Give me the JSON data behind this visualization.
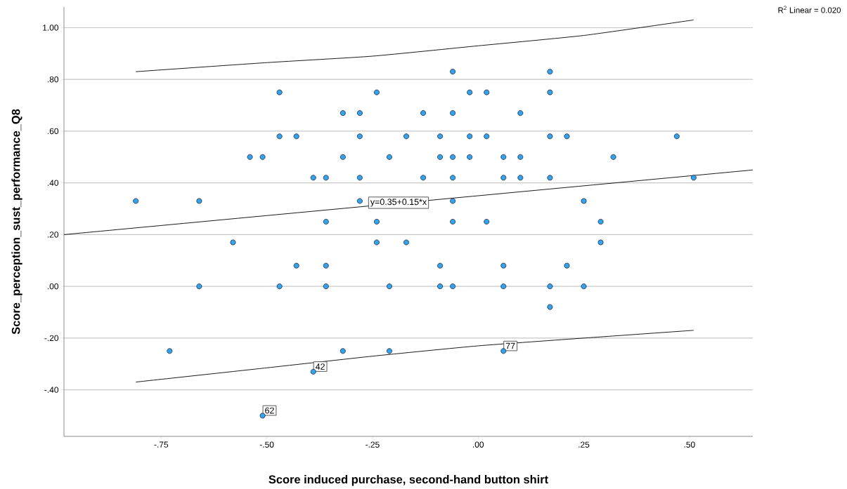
{
  "chart_data": {
    "type": "scatter",
    "xlabel": "Score induced purchase, second-hand button shirt",
    "ylabel": "Score_perception_sust_performance_Q8",
    "xlim": [
      -0.98,
      0.65
    ],
    "ylim": [
      -0.58,
      1.08
    ],
    "xticks": [
      {
        "value": -0.75,
        "label": "-.75"
      },
      {
        "value": -0.5,
        "label": "-.50"
      },
      {
        "value": -0.25,
        "label": "-.25"
      },
      {
        "value": 0,
        "label": ".00"
      },
      {
        "value": 0.25,
        "label": ".25"
      },
      {
        "value": 0.5,
        "label": ".50"
      }
    ],
    "yticks": [
      {
        "value": -0.4,
        "label": "-.40"
      },
      {
        "value": -0.2,
        "label": "-.20"
      },
      {
        "value": 0,
        "label": ".00"
      },
      {
        "value": 0.2,
        "label": ".20"
      },
      {
        "value": 0.4,
        "label": ".40"
      },
      {
        "value": 0.6,
        "label": ".60"
      },
      {
        "value": 0.8,
        "label": ".80"
      },
      {
        "value": 1,
        "label": "1.00"
      }
    ],
    "grid": "y",
    "series": [
      {
        "marker": "circle",
        "color": "#33a3ee",
        "x": [
          -0.06,
          0.17,
          -0.47,
          -0.24,
          -0.02,
          0.02,
          0.17,
          -0.32,
          -0.28,
          -0.13,
          -0.06,
          0.1,
          -0.47,
          -0.43,
          -0.28,
          -0.17,
          -0.09,
          -0.02,
          0.02,
          0.17,
          0.21,
          0.47,
          -0.54,
          -0.51,
          -0.32,
          -0.21,
          -0.09,
          -0.06,
          -0.02,
          0.06,
          0.1,
          0.32,
          -0.39,
          -0.36,
          -0.28,
          -0.13,
          -0.06,
          0.06,
          0.1,
          0.17,
          0.51,
          -0.81,
          -0.66,
          -0.28,
          -0.06,
          0.25,
          -0.36,
          -0.24,
          -0.06,
          0.02,
          0.29,
          -0.58,
          -0.24,
          -0.17,
          0.29,
          -0.43,
          -0.36,
          -0.09,
          0.06,
          0.21,
          -0.66,
          -0.47,
          -0.36,
          -0.21,
          -0.09,
          -0.06,
          0.06,
          0.17,
          0.25,
          0.17,
          -0.73,
          -0.32,
          -0.21,
          0.06,
          -0.39,
          -0.51
        ],
        "values": [
          0.83,
          0.83,
          0.75,
          0.75,
          0.75,
          0.75,
          0.75,
          0.67,
          0.67,
          0.67,
          0.67,
          0.67,
          0.58,
          0.58,
          0.58,
          0.58,
          0.58,
          0.58,
          0.58,
          0.58,
          0.58,
          0.58,
          0.5,
          0.5,
          0.5,
          0.5,
          0.5,
          0.5,
          0.5,
          0.5,
          0.5,
          0.5,
          0.42,
          0.42,
          0.42,
          0.42,
          0.42,
          0.42,
          0.42,
          0.42,
          0.42,
          0.33,
          0.33,
          0.33,
          0.33,
          0.33,
          0.25,
          0.25,
          0.25,
          0.25,
          0.25,
          0.17,
          0.17,
          0.17,
          0.17,
          0.08,
          0.08,
          0.08,
          0.08,
          0.08,
          0,
          0,
          0,
          0,
          0,
          0,
          0,
          0,
          0,
          -0.08,
          -0.25,
          -0.25,
          -0.25,
          -0.25,
          -0.33,
          -0.5
        ]
      },
      {
        "type": "line",
        "color": "#000000",
        "x": [
          -0.98,
          0.65
        ],
        "values": [
          0.2,
          0.45
        ]
      },
      {
        "type": "line",
        "color": "#000000",
        "x": [
          -0.81,
          -0.5,
          -0.25,
          0,
          0.25,
          0.51
        ],
        "values": [
          0.83,
          0.865,
          0.89,
          0.93,
          0.97,
          1.03
        ]
      },
      {
        "type": "line",
        "color": "#000000",
        "x": [
          -0.81,
          -0.5,
          -0.25,
          0,
          0.25,
          0.51
        ],
        "values": [
          -0.37,
          -0.315,
          -0.27,
          -0.23,
          -0.2,
          -0.17
        ]
      }
    ],
    "annotations": [
      "R$^{2}$ Linear = 0.020",
      {
        "text": "y=0.35+0.15*x",
        "x": -0.26,
        "y": 0.3
      },
      {
        "text": "42",
        "x": -0.39,
        "y": -0.33
      },
      {
        "text": "62",
        "x": -0.51,
        "y": -0.5
      },
      {
        "text": "77",
        "x": 0.06,
        "y": -0.25
      }
    ]
  }
}
